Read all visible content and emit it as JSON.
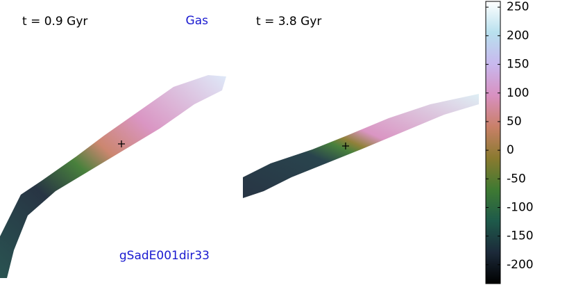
{
  "chart_data": {
    "type": "velocity-map",
    "panels": [
      {
        "label": "t = 0.9 Gyr"
      },
      {
        "label": "t = 3.8 Gyr"
      }
    ],
    "component": "Gas",
    "model": "gSadE001dir33",
    "colorbar": {
      "ylim": [
        -233,
        260
      ],
      "yticks": [
        -200,
        -150,
        -100,
        -50,
        0,
        50,
        100,
        150,
        200,
        250
      ],
      "colormap": [
        "#000000",
        "#1c2a3a",
        "#1e5a4a",
        "#3f7a32",
        "#8a7a2f",
        "#c98068",
        "#d890c0",
        "#c8b8ee",
        "#b8e0ee",
        "#ffffff"
      ]
    }
  }
}
